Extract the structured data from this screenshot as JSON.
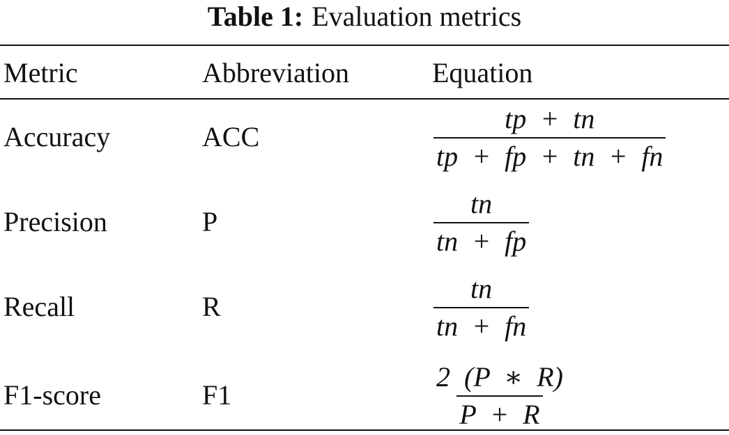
{
  "caption": {
    "label": "Table 1:",
    "text": "Evaluation metrics"
  },
  "table": {
    "header": [
      "Metric",
      "Abbreviation",
      "Equation"
    ],
    "rows": [
      {
        "metric": "Accuracy",
        "abbreviation": "ACC",
        "equation": {
          "numerator": "tp + tn",
          "denominator": "tp + fp + tn + fn"
        }
      },
      {
        "metric": "Precision",
        "abbreviation": "P",
        "equation": {
          "numerator": "tn",
          "denominator": "tn + fp"
        }
      },
      {
        "metric": "Recall",
        "abbreviation": "R",
        "equation": {
          "numerator": "tn",
          "denominator": "tn + fn"
        }
      },
      {
        "metric": "F1-score",
        "abbreviation": "F1",
        "equation": {
          "numerator": "2 (P ∗ R)",
          "denominator": "P + R"
        }
      }
    ]
  }
}
